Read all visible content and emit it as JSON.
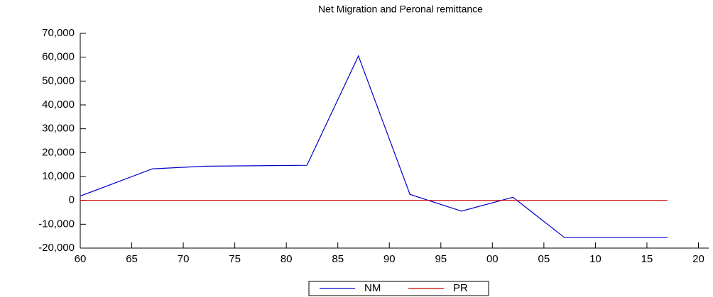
{
  "chart_data": {
    "type": "line",
    "title": "Net Migration and Peronal remittance",
    "x": [
      1960,
      1967,
      1972,
      1982,
      1987,
      1992,
      1997,
      2002,
      2007,
      2012,
      2017
    ],
    "series": [
      {
        "name": "NM",
        "color": "#0000cc",
        "values": [
          1800,
          13200,
          14300,
          14700,
          60500,
          2500,
          -4500,
          1300,
          -15600,
          -15600,
          -15600
        ]
      },
      {
        "name": "PR",
        "color": "#cc0000",
        "values": [
          0,
          0,
          0,
          0,
          0,
          0,
          0,
          0,
          0,
          0,
          0
        ]
      }
    ],
    "xlim": [
      1960,
      2021
    ],
    "xticks": [
      {
        "value": 1960,
        "label": "60"
      },
      {
        "value": 1965,
        "label": "65"
      },
      {
        "value": 1970,
        "label": "70"
      },
      {
        "value": 1975,
        "label": "75"
      },
      {
        "value": 1980,
        "label": "80"
      },
      {
        "value": 1985,
        "label": "85"
      },
      {
        "value": 1990,
        "label": "90"
      },
      {
        "value": 1995,
        "label": "95"
      },
      {
        "value": 2000,
        "label": "00"
      },
      {
        "value": 2005,
        "label": "05"
      },
      {
        "value": 2010,
        "label": "10"
      },
      {
        "value": 2015,
        "label": "15"
      },
      {
        "value": 2020,
        "label": "20"
      }
    ],
    "ylim": [
      -20000,
      70000
    ],
    "yticks": [
      {
        "value": -20000,
        "label": "-20,000"
      },
      {
        "value": -10000,
        "label": "-10,000"
      },
      0,
      {
        "value": 10000,
        "label": "10,000"
      },
      {
        "value": 20000,
        "label": "20,000"
      },
      {
        "value": 30000,
        "label": "30,000"
      },
      {
        "value": 40000,
        "label": "40,000"
      },
      {
        "value": 50000,
        "label": "50,000"
      },
      {
        "value": 60000,
        "label": "60,000"
      },
      {
        "value": 70000,
        "label": "70,000"
      }
    ],
    "legend": "bottom"
  }
}
